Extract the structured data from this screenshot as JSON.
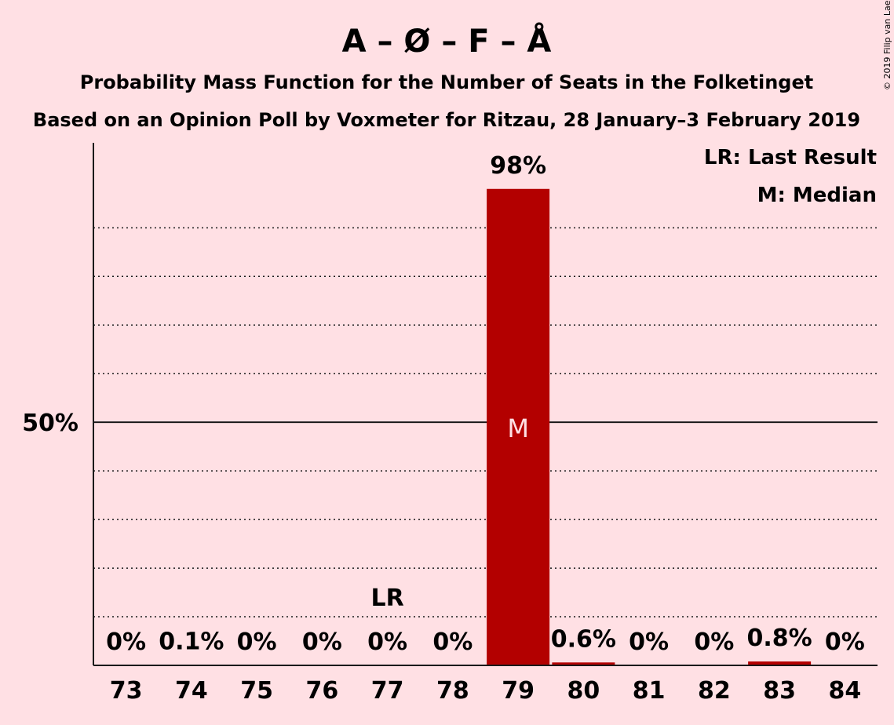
{
  "chart_data": {
    "type": "bar",
    "title": "A – Ø – F – Å",
    "subtitle": "Probability Mass Function for the Number of Seats in the Folketinget",
    "subtitle2": "Based on an Opinion Poll by Voxmeter for Ritzau, 28 January–3 February 2019",
    "copyright": "© 2019 Filip van Laenen",
    "categories": [
      "73",
      "74",
      "75",
      "76",
      "77",
      "78",
      "79",
      "80",
      "81",
      "82",
      "83",
      "84"
    ],
    "values": [
      0,
      0.1,
      0,
      0,
      0,
      0,
      98,
      0.6,
      0,
      0,
      0.8,
      0
    ],
    "value_labels": [
      "0%",
      "0.1%",
      "0%",
      "0%",
      "0%",
      "0%",
      "98%",
      "0.6%",
      "0%",
      "0%",
      "0.8%",
      "0%"
    ],
    "ylim": [
      0,
      107
    ],
    "ytick_label": "50%",
    "ytick_value": 50,
    "gridlines": [
      10,
      20,
      30,
      40,
      60,
      70,
      80,
      90
    ],
    "last_result": {
      "category": "77",
      "label": "LR"
    },
    "median": {
      "category": "79",
      "label": "M"
    },
    "legend": [
      "LR: Last Result",
      "M: Median"
    ],
    "colors": {
      "background": "#ffe0e4",
      "bar": "#b30000",
      "text": "#1a1a1a",
      "median_text": "#ffe0e4"
    }
  }
}
